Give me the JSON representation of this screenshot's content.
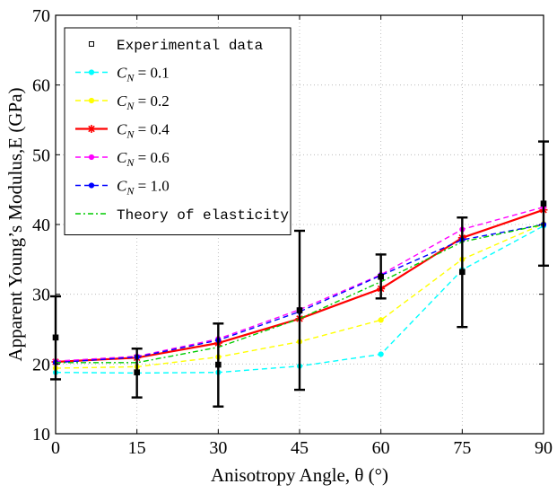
{
  "chart_data": {
    "type": "line",
    "title": "",
    "xlabel": "Anisotropy Angle, θ (°)",
    "ylabel": "Apparent Young’s Modulus,E (GPa)",
    "xlim": [
      0,
      90
    ],
    "ylim": [
      10,
      70
    ],
    "xticks": [
      0,
      15,
      30,
      45,
      60,
      75,
      90
    ],
    "yticks": [
      10,
      20,
      30,
      40,
      50,
      60,
      70
    ],
    "grid": true,
    "legend_position": "top-left",
    "x": [
      0,
      15,
      30,
      45,
      60,
      75,
      90
    ],
    "experimental": {
      "name": "Experimental data",
      "color": "#000000",
      "values": [
        23.8,
        18.8,
        19.9,
        27.7,
        32.5,
        33.2,
        43.0
      ],
      "err_low": [
        17.8,
        15.2,
        13.9,
        16.3,
        29.4,
        25.3,
        34.1
      ],
      "err_high": [
        29.7,
        22.2,
        25.8,
        39.1,
        35.7,
        41.0,
        51.9
      ]
    },
    "series": [
      {
        "name": "C_N = 0.1",
        "label_prefix": "C",
        "label_sub": "N",
        "label_value": " = 0.1",
        "color": "#00ffff",
        "dash": "6,4",
        "marker": "dot",
        "values": [
          18.8,
          18.7,
          18.8,
          19.7,
          21.4,
          33.5,
          39.8
        ]
      },
      {
        "name": "C_N = 0.2",
        "label_prefix": "C",
        "label_sub": "N",
        "label_value": " = 0.2",
        "color": "#ffff00",
        "dash": "6,4",
        "marker": "dot",
        "values": [
          19.4,
          19.6,
          21.0,
          23.2,
          26.3,
          35.0,
          40.1
        ]
      },
      {
        "name": "C_N = 0.4",
        "label_prefix": "C",
        "label_sub": "N",
        "label_value": " = 0.4",
        "color": "#ff0000",
        "dash": "",
        "marker": "star",
        "values": [
          20.3,
          20.9,
          23.0,
          26.5,
          30.8,
          38.1,
          42.1
        ]
      },
      {
        "name": "C_N = 0.6",
        "label_prefix": "C",
        "label_sub": "N",
        "label_value": " = 0.6",
        "color": "#ff00ff",
        "dash": "6,4",
        "marker": "dot",
        "values": [
          20.4,
          21.1,
          23.6,
          27.8,
          32.8,
          39.3,
          42.5
        ]
      },
      {
        "name": "C_N = 1.0",
        "label_prefix": "C",
        "label_sub": "N",
        "label_value": " = 1.0",
        "color": "#0000ff",
        "dash": "6,4",
        "marker": "dot",
        "values": [
          20.2,
          21.0,
          23.4,
          27.5,
          32.7,
          37.8,
          40.0
        ]
      },
      {
        "name": "Theory of elasticity",
        "label_prefix": "Theory of elasticity",
        "label_sub": "",
        "label_value": "",
        "color": "#00cc00",
        "dash": "6,3,2,3",
        "marker": "none",
        "values": [
          20.2,
          20.2,
          22.4,
          26.5,
          31.8,
          37.5,
          40.0
        ]
      }
    ]
  }
}
